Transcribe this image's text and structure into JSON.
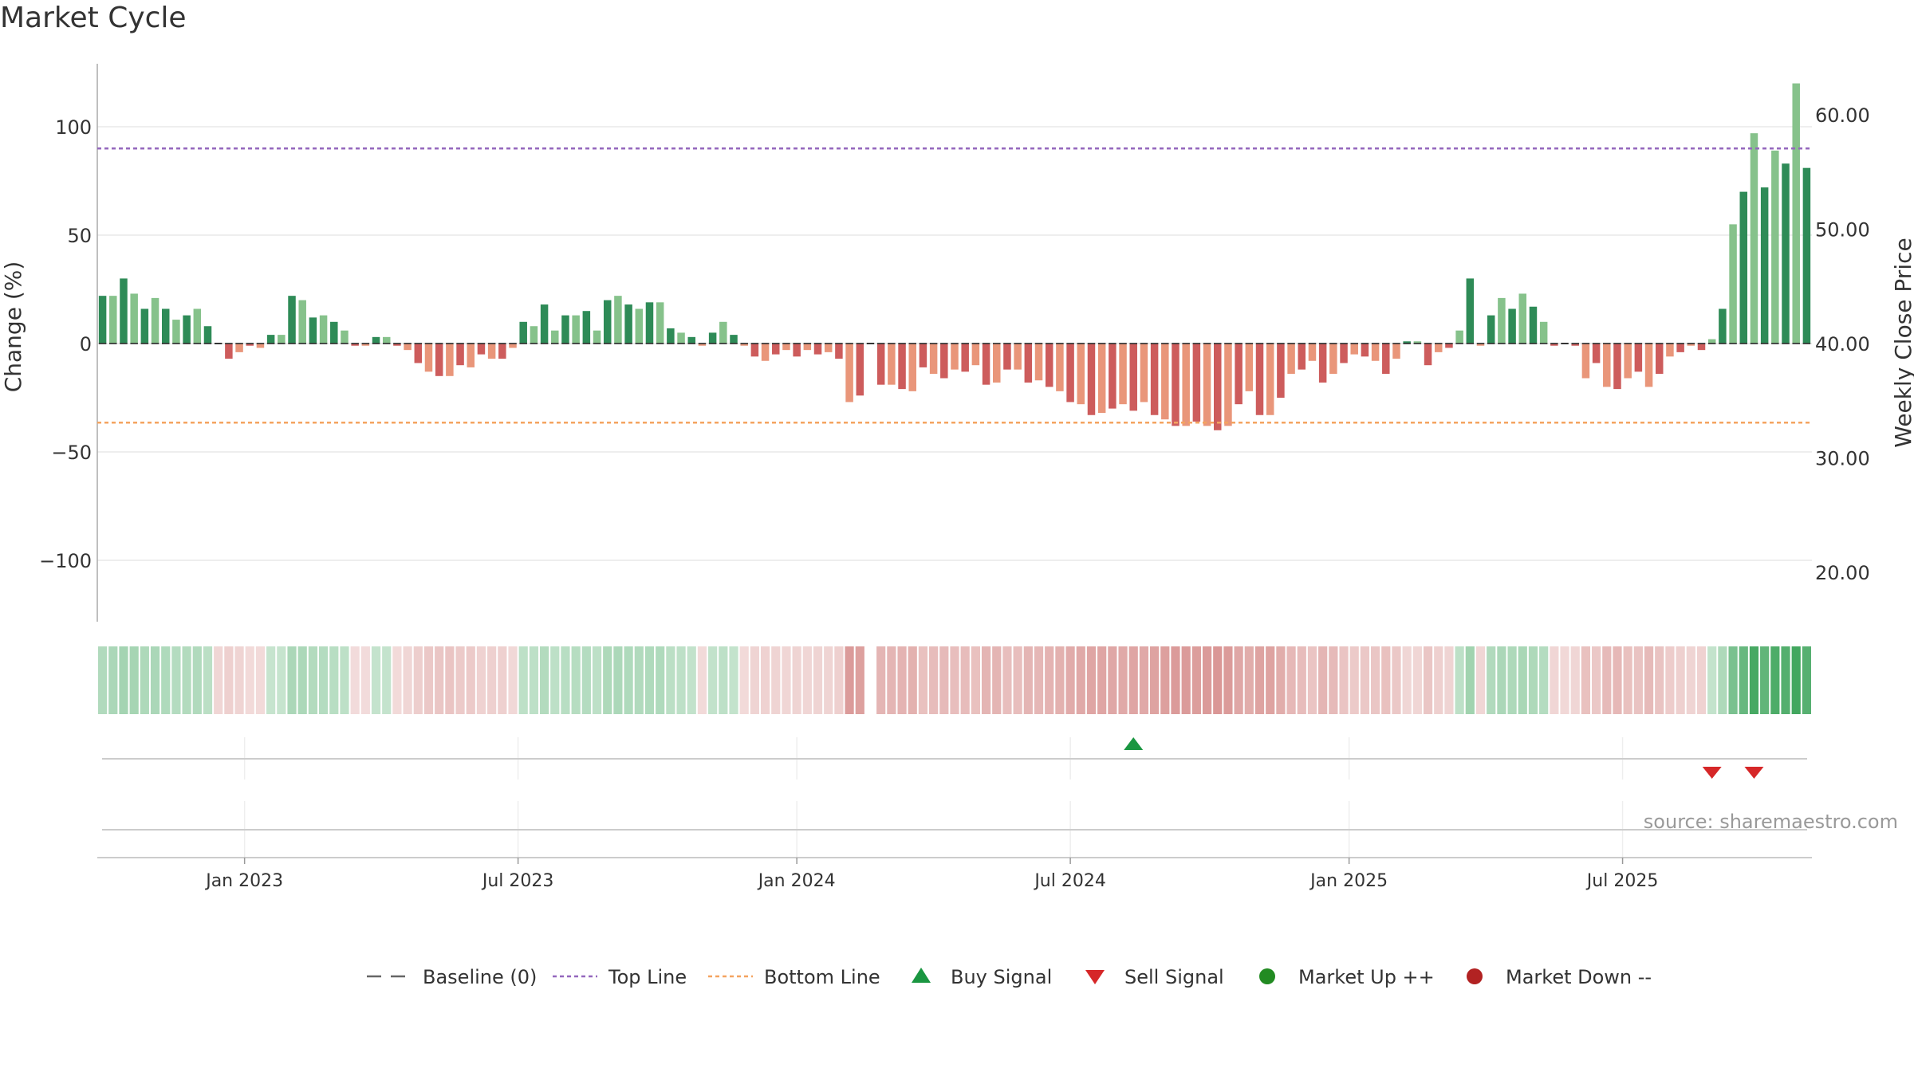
{
  "chart_data": {
    "type": "bar",
    "title": "Market Cycle",
    "ylabel_left": "Change (%)",
    "ylabel_right": "Weekly Close Price",
    "ylim": [
      -128,
      128
    ],
    "yticks": [
      100,
      50,
      0,
      -50,
      -100
    ],
    "ytick_labels": [
      "100",
      "50",
      "0",
      "−50",
      "−100"
    ],
    "ylim_right": [
      15,
      62
    ],
    "yticks_right": [
      60,
      50,
      40,
      30,
      20
    ],
    "ytick_right_labels": [
      "60.00",
      "50.00",
      "40.00",
      "30.00",
      "20.00"
    ],
    "reference_lines": {
      "top_line": 90,
      "bottom_line": -36.5,
      "baseline": 0
    },
    "x_ticks": [
      {
        "label": "Jan 2023",
        "week": 14
      },
      {
        "label": "Jul 2023",
        "week": 40
      },
      {
        "label": "Jan 2024",
        "week": 66.5
      },
      {
        "label": "Jul 2024",
        "week": 92.5
      },
      {
        "label": "Jan 2025",
        "week": 119
      },
      {
        "label": "Jul 2025",
        "week": 145
      }
    ],
    "values": [
      22,
      22,
      30,
      23,
      16,
      21,
      16,
      11,
      13,
      16,
      8,
      0,
      -7,
      -4,
      -1,
      -2,
      4,
      4,
      22,
      20,
      12,
      13,
      10,
      6,
      -1,
      -1,
      3,
      3,
      -1,
      -3,
      -9,
      -13,
      -15,
      -15,
      -10,
      -11,
      -5,
      -7,
      -7,
      -2,
      10,
      8,
      18,
      6,
      13,
      13,
      15,
      6,
      20,
      22,
      18,
      16,
      19,
      19,
      7,
      5,
      3,
      -1,
      5,
      10,
      4,
      -1,
      -6,
      -8,
      -5,
      -3,
      -6,
      -3,
      -5,
      -4,
      -7,
      -27,
      -24,
      0,
      -19,
      -19,
      -21,
      -22,
      -11,
      -14,
      -16,
      -12,
      -13,
      -10,
      -19,
      -18,
      -12,
      -12,
      -18,
      -17,
      -20,
      -22,
      -27,
      -28,
      -33,
      -32,
      -30,
      -28,
      -31,
      -27,
      -33,
      -35,
      -38,
      -38,
      -36,
      -38,
      -40,
      -38,
      -28,
      -22,
      -33,
      -33,
      -25,
      -14,
      -12,
      -8,
      -18,
      -14,
      -9,
      -5,
      -6,
      -8,
      -14,
      -7,
      1,
      1,
      -10,
      -4,
      -2,
      6,
      30,
      -1,
      13,
      21,
      16,
      23,
      17,
      10,
      -1,
      0,
      -1,
      -16,
      -9,
      -20,
      -21,
      -16,
      -13,
      -20,
      -14,
      -6,
      -4,
      -1,
      -3,
      2,
      16,
      55,
      70,
      97,
      72,
      89,
      83,
      120,
      81
    ],
    "cycle_strip_values": [
      16,
      20,
      24,
      23,
      18,
      20,
      17,
      14,
      15,
      16,
      10,
      -5,
      -8,
      -6,
      -3,
      -3,
      3,
      3,
      20,
      19,
      15,
      14,
      12,
      8,
      -2,
      -2,
      4,
      4,
      -3,
      -5,
      -9,
      -12,
      -13,
      -14,
      -11,
      -11,
      -7,
      -8,
      -8,
      -4,
      9,
      9,
      15,
      9,
      12,
      13,
      14,
      9,
      18,
      19,
      17,
      16,
      17,
      17,
      10,
      8,
      6,
      -3,
      6,
      9,
      5,
      -3,
      -6,
      -7,
      -6,
      -5,
      -6,
      -5,
      -6,
      -6,
      -8,
      -35,
      -33,
      0,
      -22,
      -22,
      -23,
      -24,
      -16,
      -18,
      -19,
      -17,
      -18,
      -16,
      -22,
      -22,
      -17,
      -17,
      -22,
      -21,
      -23,
      -24,
      -27,
      -28,
      -30,
      -30,
      -29,
      -28,
      -30,
      -28,
      -31,
      -33,
      -35,
      -35,
      -34,
      -35,
      -37,
      -35,
      -29,
      -26,
      -31,
      -31,
      -26,
      -20,
      -18,
      -14,
      -22,
      -19,
      -14,
      -11,
      -12,
      -13,
      -16,
      -12,
      -5,
      -5,
      -13,
      -8,
      -6,
      8,
      26,
      -5,
      16,
      20,
      18,
      21,
      18,
      14,
      -5,
      -4,
      -5,
      -16,
      -12,
      -19,
      -20,
      -16,
      -15,
      -19,
      -15,
      -10,
      -8,
      -6,
      -7,
      5,
      18,
      50,
      62,
      82,
      66,
      78,
      74,
      110,
      72
    ],
    "buy_signals": [
      {
        "week": 98,
        "label": "Buy Signal"
      }
    ],
    "sell_signals": [
      {
        "week": 153,
        "label": "Sell Signal"
      },
      {
        "week": 157,
        "label": "Sell Signal"
      }
    ],
    "source": "source: sharemaestro.com",
    "legend": [
      {
        "label": "Baseline (0)",
        "kind": "dash",
        "color": "#666666"
      },
      {
        "label": "Top Line",
        "kind": "dotted",
        "color": "#9467bd"
      },
      {
        "label": "Bottom Line",
        "kind": "dotted",
        "color": "#f4a460"
      },
      {
        "label": "Buy Signal",
        "kind": "triangle-up",
        "color": "#1a9641"
      },
      {
        "label": "Sell Signal",
        "kind": "triangle-down",
        "color": "#d62728"
      },
      {
        "label": "Market Up ++",
        "kind": "circle",
        "color": "#228b22"
      },
      {
        "label": "Market Down --",
        "kind": "circle",
        "color": "#b22222"
      }
    ],
    "legend_position": "bottom-center",
    "grid": true,
    "colors": {
      "up_strong": "#2e8b57",
      "up_weak": "#86c28b",
      "down_strong": "#cd5c5c",
      "down_weak": "#e9967a",
      "top_line": "#9467bd",
      "bottom_line": "#f4a460"
    }
  }
}
